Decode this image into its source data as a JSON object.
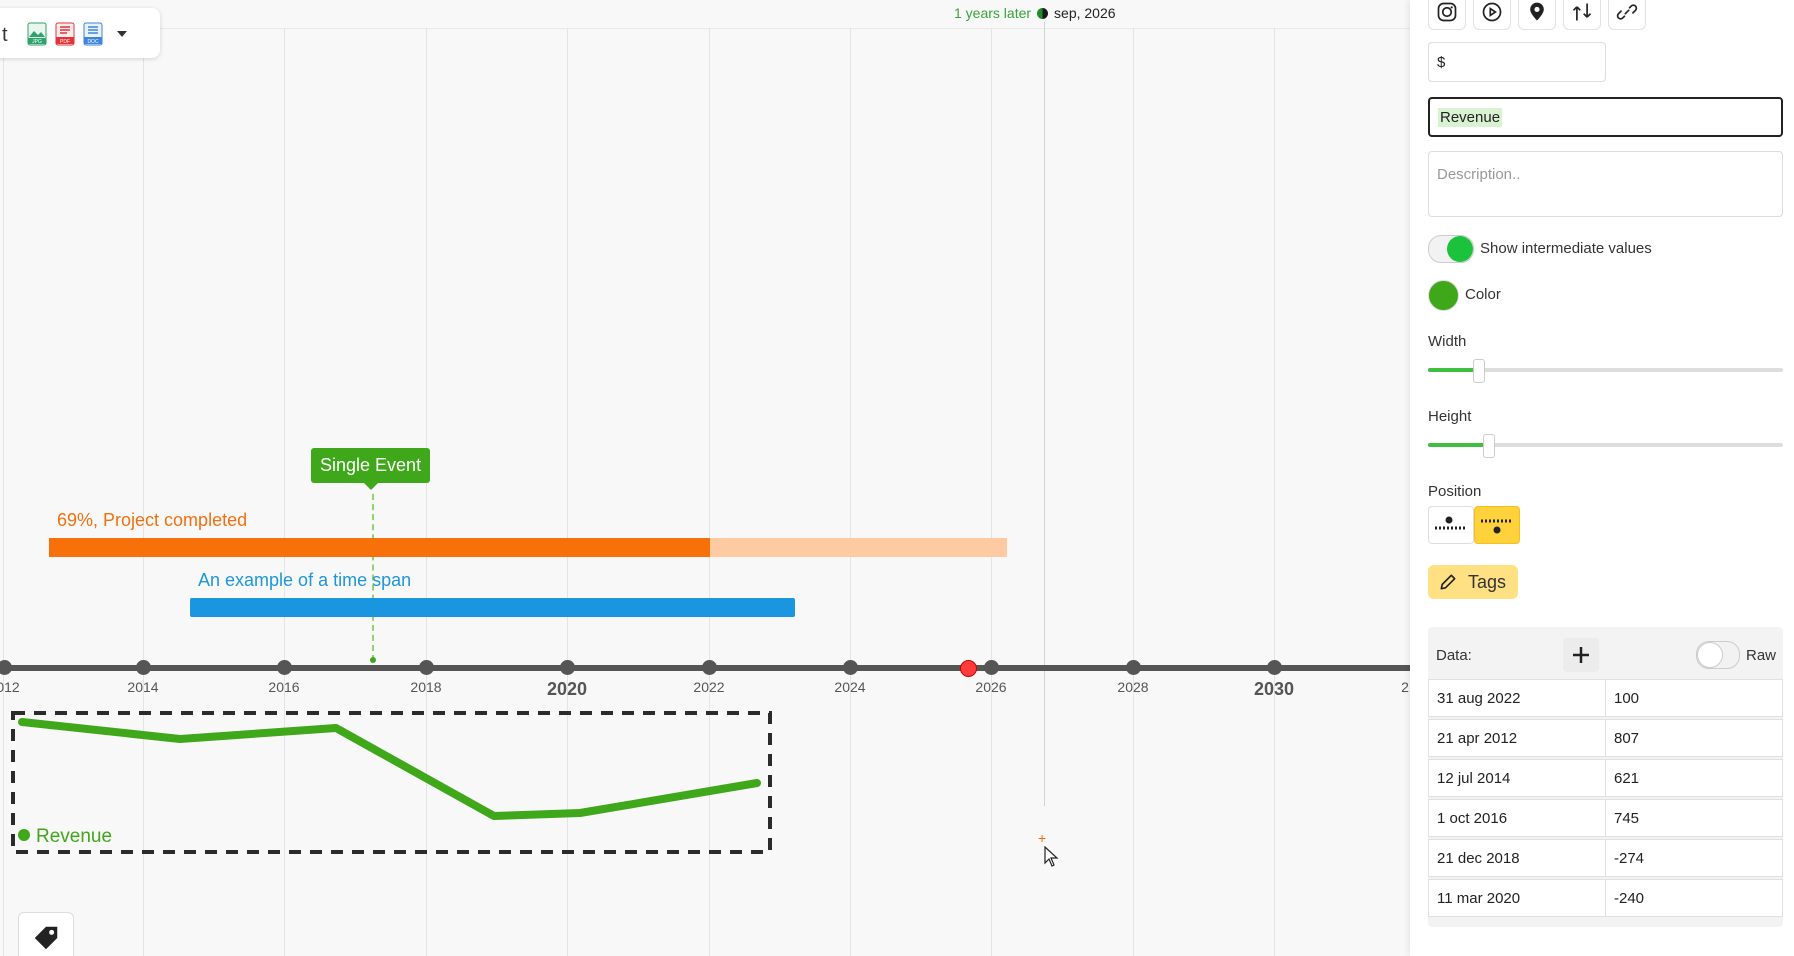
{
  "export": {
    "cut_text": "t",
    "formats": [
      "JPG",
      "PDF",
      "DOC"
    ],
    "colors": {
      "jpg": "#2fa36b",
      "pdf": "#e0353b",
      "doc": "#3f86d8"
    }
  },
  "now_label": {
    "later": "1 years later",
    "date": "sep, 2026"
  },
  "single_event": {
    "label": "Single Event"
  },
  "project_span": {
    "label": "69%, Project completed",
    "progress": 0.69,
    "color": "#f8700a"
  },
  "time_span": {
    "label": "An example of a time span",
    "color": "#1a96e0"
  },
  "axis": {
    "labels": [
      {
        "text": "012",
        "major": false
      },
      {
        "text": "2014",
        "major": false
      },
      {
        "text": "2016",
        "major": false
      },
      {
        "text": "2018",
        "major": false
      },
      {
        "text": "2020",
        "major": true
      },
      {
        "text": "2022",
        "major": false
      },
      {
        "text": "2024",
        "major": false
      },
      {
        "text": "2026",
        "major": false
      },
      {
        "text": "2028",
        "major": false
      },
      {
        "text": "2030",
        "major": true
      },
      {
        "text": "2",
        "major": false
      }
    ]
  },
  "graph": {
    "legend": "Revenue",
    "color": "#3fa81a"
  },
  "panel": {
    "unit_value": "$",
    "name_value": "Revenue",
    "description_placeholder": "Description..",
    "show_intermediate_label": "Show intermediate values",
    "color_label": "Color",
    "color_value": "#3fa81a",
    "width_label": "Width",
    "width_level": 0.14,
    "height_label": "Height",
    "height_level": 0.17,
    "position_label": "Position",
    "tags_label": "Tags",
    "data_label": "Data:",
    "raw_label": "Raw",
    "rows": [
      {
        "date": "31 aug 2022",
        "value": "100"
      },
      {
        "date": "21 apr 2012",
        "value": "807"
      },
      {
        "date": "12 jul 2014",
        "value": "621"
      },
      {
        "date": "1 oct 2016",
        "value": "745"
      },
      {
        "date": "21 dec 2018",
        "value": "-274"
      },
      {
        "date": "11 mar 2020",
        "value": "-240"
      }
    ]
  }
}
